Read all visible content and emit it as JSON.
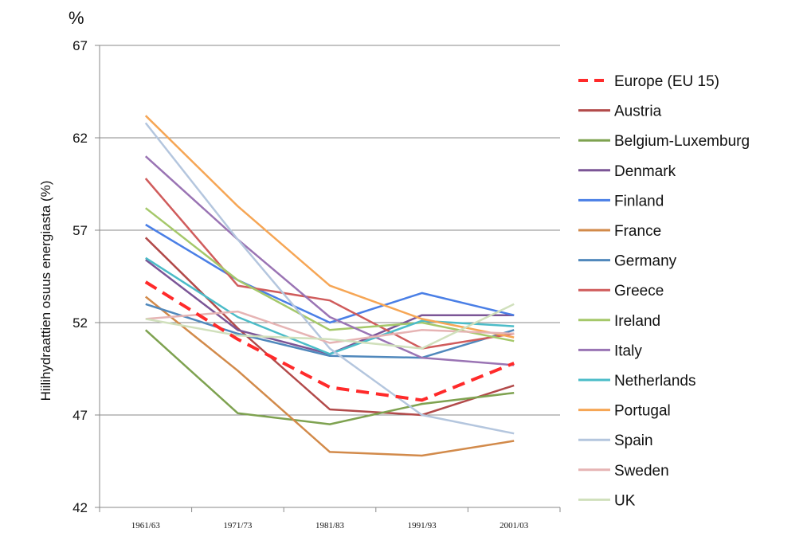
{
  "chart_data": {
    "type": "line",
    "unit_label": "%",
    "ylabel": "Hiilihydraattien osuus energiasta (%)",
    "xlabel": "",
    "ylim": [
      42,
      67
    ],
    "y_ticks": [
      42,
      47,
      52,
      57,
      62,
      67
    ],
    "grid": true,
    "legend_position": "right",
    "categories": [
      "1961/63",
      "1971/73",
      "1981/83",
      "1991/93",
      "2001/03"
    ],
    "series": [
      {
        "name": "Europe (EU 15)",
        "color": "#ff2a2a",
        "dashed": true,
        "values": [
          54.2,
          51.1,
          48.5,
          47.8,
          49.8
        ]
      },
      {
        "name": "Austria",
        "color": "#b24a4a",
        "values": [
          56.6,
          51.7,
          47.3,
          47.0,
          48.6
        ]
      },
      {
        "name": "Belgium-Luxemburg",
        "color": "#7ea250",
        "values": [
          51.6,
          47.1,
          46.5,
          47.6,
          48.2
        ]
      },
      {
        "name": "Denmark",
        "color": "#7b5596",
        "values": [
          55.4,
          51.6,
          50.3,
          52.4,
          52.4
        ]
      },
      {
        "name": "Finland",
        "color": "#4a7fe6",
        "values": [
          57.3,
          54.3,
          52.0,
          53.6,
          52.4
        ]
      },
      {
        "name": "France",
        "color": "#d28a4a",
        "values": [
          53.4,
          49.4,
          45.0,
          44.8,
          45.6
        ]
      },
      {
        "name": "Germany",
        "color": "#5088bc",
        "values": [
          53.0,
          51.4,
          50.2,
          50.1,
          51.6
        ]
      },
      {
        "name": "Greece",
        "color": "#d05c5c",
        "values": [
          59.8,
          54.0,
          53.2,
          50.6,
          51.4
        ]
      },
      {
        "name": "Ireland",
        "color": "#a5c86a",
        "values": [
          58.2,
          54.3,
          51.6,
          52.0,
          51.0
        ]
      },
      {
        "name": "Italy",
        "color": "#9a74b4",
        "values": [
          61.0,
          56.5,
          52.3,
          50.1,
          49.7
        ]
      },
      {
        "name": "Netherlands",
        "color": "#4bbcc8",
        "values": [
          55.5,
          52.3,
          50.3,
          52.1,
          51.8
        ]
      },
      {
        "name": "Portugal",
        "color": "#f6a655",
        "values": [
          63.2,
          58.3,
          54.0,
          52.2,
          51.2
        ]
      },
      {
        "name": "Spain",
        "color": "#b4c6de",
        "values": [
          62.8,
          56.5,
          50.6,
          47.0,
          46.0
        ]
      },
      {
        "name": "Sweden",
        "color": "#e6b4b4",
        "values": [
          52.2,
          52.6,
          50.9,
          51.6,
          51.4
        ]
      },
      {
        "name": "UK",
        "color": "#d0e0bc",
        "values": [
          52.2,
          51.3,
          51.1,
          50.6,
          53.0
        ]
      }
    ]
  }
}
